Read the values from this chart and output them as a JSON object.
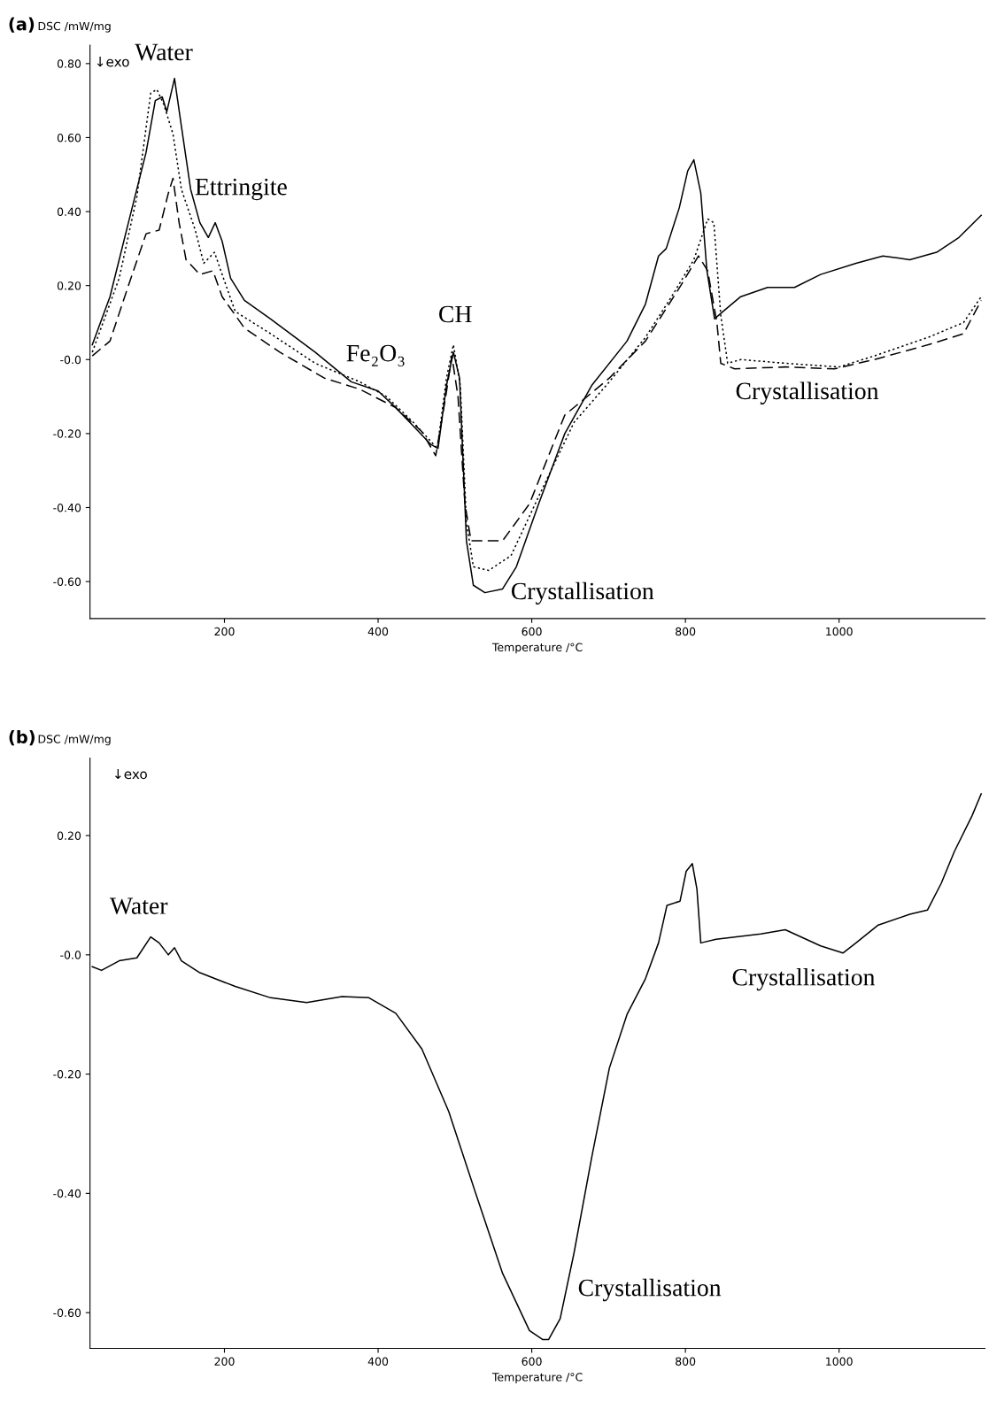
{
  "chart_data": [
    {
      "type": "line",
      "title": "(a)",
      "ylabel": "DSC /mW/mg",
      "xlabel": "Temperature /°C",
      "xlim": [
        25,
        1190
      ],
      "ylim": [
        -0.7,
        0.85
      ],
      "xticks": [
        200,
        400,
        600,
        800,
        1000
      ],
      "yticks": [
        {
          "value": 0.8,
          "label": "0.80"
        },
        {
          "value": 0.6,
          "label": "0.60"
        },
        {
          "value": 0.4,
          "label": "0.40"
        },
        {
          "value": 0.2,
          "label": "0.20"
        },
        {
          "value": 0,
          "label": "-0.0"
        },
        {
          "value": -0.2,
          "label": "-0.20"
        },
        {
          "value": -0.4,
          "label": "-0.40"
        },
        {
          "value": -0.6,
          "label": "-0.60"
        }
      ],
      "grid": false,
      "legend": false,
      "marker": "none",
      "series": [
        {
          "color": "#000000",
          "line_style": "solid",
          "x": [
            28,
            51,
            75,
            98,
            110,
            119,
            125,
            135,
            144,
            156,
            168,
            179,
            188,
            197,
            208,
            226,
            260,
            318,
            365,
            400,
            423,
            446,
            469,
            478,
            489,
            498,
            506,
            515,
            524,
            539,
            562,
            580,
            609,
            643,
            678,
            724,
            748,
            765,
            775,
            792,
            803,
            811,
            820,
            828,
            838,
            849,
            872,
            907,
            942,
            976,
            1022,
            1057,
            1092,
            1127,
            1156,
            1185
          ],
          "values": [
            0.04,
            0.17,
            0.37,
            0.56,
            0.7,
            0.71,
            0.67,
            0.76,
            0.63,
            0.46,
            0.37,
            0.33,
            0.37,
            0.32,
            0.22,
            0.16,
            0.11,
            0.02,
            -0.06,
            -0.085,
            -0.13,
            -0.18,
            -0.23,
            -0.24,
            -0.07,
            0.02,
            -0.05,
            -0.49,
            -0.61,
            -0.63,
            -0.62,
            -0.56,
            -0.39,
            -0.2,
            -0.07,
            0.05,
            0.15,
            0.28,
            0.3,
            0.41,
            0.51,
            0.54,
            0.45,
            0.24,
            0.11,
            0.13,
            0.17,
            0.195,
            0.195,
            0.23,
            0.26,
            0.28,
            0.27,
            0.29,
            0.33,
            0.39
          ]
        },
        {
          "color": "#000000",
          "line_style": "dotted",
          "x": [
            28,
            63,
            86,
            104,
            112,
            121,
            133,
            144,
            162,
            173,
            187,
            197,
            214,
            260,
            318,
            376,
            411,
            446,
            477,
            489,
            498,
            507,
            515,
            524,
            544,
            573,
            609,
            655,
            701,
            748,
            782,
            811,
            829,
            837,
            846,
            855,
            872,
            930,
            1000,
            1046,
            1116,
            1162,
            1185
          ],
          "values": [
            0.02,
            0.22,
            0.44,
            0.72,
            0.73,
            0.69,
            0.61,
            0.46,
            0.35,
            0.26,
            0.29,
            0.23,
            0.13,
            0.07,
            -0.01,
            -0.06,
            -0.1,
            -0.17,
            -0.24,
            -0.05,
            0.04,
            -0.07,
            -0.44,
            -0.56,
            -0.57,
            -0.53,
            -0.37,
            -0.17,
            -0.06,
            0.06,
            0.17,
            0.27,
            0.38,
            0.37,
            0.12,
            -0.01,
            0.0,
            -0.01,
            -0.02,
            0.01,
            0.06,
            0.1,
            0.17
          ]
        },
        {
          "color": "#000000",
          "line_style": "dashed",
          "x": [
            28,
            51,
            75,
            98,
            115,
            127,
            133,
            141,
            150,
            168,
            185,
            197,
            226,
            272,
            330,
            376,
            423,
            457,
            475,
            488,
            496,
            504,
            513,
            521,
            562,
            597,
            643,
            701,
            748,
            794,
            817,
            829,
            841,
            846,
            864,
            930,
            994,
            1046,
            1116,
            1162,
            1185
          ],
          "values": [
            0.01,
            0.05,
            0.2,
            0.34,
            0.35,
            0.45,
            0.49,
            0.37,
            0.27,
            0.23,
            0.24,
            0.17,
            0.085,
            0.02,
            -0.05,
            -0.08,
            -0.13,
            -0.195,
            -0.26,
            -0.1,
            0.01,
            -0.1,
            -0.39,
            -0.49,
            -0.49,
            -0.39,
            -0.15,
            -0.05,
            0.05,
            0.2,
            0.28,
            0.24,
            0.1,
            -0.01,
            -0.025,
            -0.02,
            -0.025,
            0.0,
            0.04,
            0.07,
            0.16
          ]
        }
      ],
      "annotations": [
        "↓exo",
        "Water",
        "Ettringite",
        "Fe₂O₃",
        "CH",
        "Crystallisation",
        "Crystallisation"
      ]
    },
    {
      "type": "line",
      "title": "(b)",
      "ylabel": "DSC /mW/mg",
      "xlabel": "Temperature /°C",
      "xlim": [
        25,
        1190
      ],
      "ylim": [
        -0.66,
        0.33
      ],
      "xticks": [
        200,
        400,
        600,
        800,
        1000
      ],
      "yticks": [
        {
          "value": 0.2,
          "label": "0.20"
        },
        {
          "value": 0,
          "label": "-0.0"
        },
        {
          "value": -0.2,
          "label": "-0.20"
        },
        {
          "value": -0.4,
          "label": "-0.40"
        },
        {
          "value": -0.6,
          "label": "-0.60"
        }
      ],
      "grid": false,
      "legend": false,
      "marker": "none",
      "series": [
        {
          "color": "#000000",
          "line_style": "solid",
          "x": [
            28,
            40,
            63,
            86,
            104,
            115,
            127,
            135,
            144,
            168,
            214,
            260,
            307,
            353,
            388,
            423,
            457,
            492,
            527,
            562,
            597,
            614,
            622,
            637,
            655,
            678,
            701,
            724,
            748,
            765,
            776,
            793,
            801,
            809,
            815,
            820,
            840,
            898,
            930,
            976,
            1005,
            1022,
            1051,
            1092,
            1115,
            1133,
            1150,
            1173,
            1185
          ],
          "values": [
            -0.02,
            -0.026,
            -0.01,
            -0.005,
            0.03,
            0.02,
            0.0,
            0.012,
            -0.01,
            -0.03,
            -0.053,
            -0.072,
            -0.08,
            -0.07,
            -0.072,
            -0.098,
            -0.158,
            -0.263,
            -0.4,
            -0.534,
            -0.63,
            -0.645,
            -0.645,
            -0.61,
            -0.5,
            -0.34,
            -0.19,
            -0.1,
            -0.04,
            0.02,
            0.083,
            0.09,
            0.14,
            0.153,
            0.11,
            0.02,
            0.026,
            0.035,
            0.042,
            0.015,
            0.003,
            0.02,
            0.05,
            0.068,
            0.075,
            0.12,
            0.173,
            0.233,
            0.27
          ]
        }
      ],
      "annotations": [
        "↓exo",
        "Water",
        "Crystallisation",
        "Crystallisation"
      ]
    }
  ]
}
